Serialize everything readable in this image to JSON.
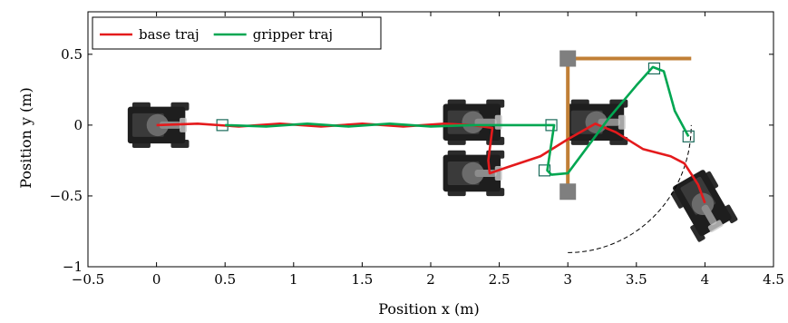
{
  "chart_data": {
    "type": "line",
    "title": "",
    "xlabel": "Position x (m)",
    "ylabel": "Position y (m)",
    "xlim": [
      -0.5,
      4.5
    ],
    "ylim": [
      -1.0,
      0.8
    ],
    "xticks": [
      -0.5,
      0,
      0.5,
      1,
      1.5,
      2,
      2.5,
      3,
      3.5,
      4,
      4.5
    ],
    "xtick_labels": [
      "−0.5",
      "0",
      "0.5",
      "1",
      "1.5",
      "2",
      "2.5",
      "3",
      "3.5",
      "4",
      "4.5"
    ],
    "yticks": [
      -1,
      -0.5,
      0,
      0.5
    ],
    "ytick_labels": [
      "−1",
      "−0.5",
      "0",
      "0.5"
    ],
    "grid": false,
    "legend_position": "top-left",
    "series": [
      {
        "name": "base traj",
        "color": "#e41a1c",
        "x": [
          0,
          0.3,
          0.6,
          0.9,
          1.2,
          1.5,
          1.8,
          2.1,
          2.3,
          2.45,
          2.42,
          2.43,
          2.55,
          2.8,
          3.0,
          3.2,
          3.35,
          3.55,
          3.75,
          3.85,
          3.95,
          4.0
        ],
        "y": [
          0.0,
          0.01,
          -0.01,
          0.01,
          -0.01,
          0.01,
          -0.01,
          0.01,
          0.0,
          -0.02,
          -0.25,
          -0.34,
          -0.3,
          -0.22,
          -0.1,
          0.01,
          -0.05,
          -0.17,
          -0.22,
          -0.27,
          -0.42,
          -0.55
        ]
      },
      {
        "name": "gripper traj",
        "color": "#00a651",
        "x": [
          0.5,
          0.8,
          1.1,
          1.4,
          1.7,
          2.0,
          2.3,
          2.6,
          2.9,
          2.85,
          2.88,
          3.0,
          3.3,
          3.5,
          3.62,
          3.7,
          3.78,
          3.88
        ],
        "y": [
          0.0,
          -0.01,
          0.01,
          -0.01,
          0.01,
          -0.01,
          0.0,
          0.0,
          0.0,
          -0.32,
          -0.35,
          -0.34,
          0.05,
          0.28,
          0.41,
          0.38,
          0.1,
          -0.08
        ]
      }
    ],
    "reference": {
      "frame_color": "#c17f36",
      "frame_x": [
        3.0,
        3.0,
        3.9
      ],
      "frame_y": [
        -0.47,
        0.47,
        0.47
      ],
      "markers_x": [
        3.0,
        3.0
      ],
      "markers_y": [
        0.47,
        -0.47
      ],
      "arc_center": [
        3.0,
        0.0
      ],
      "arc_radius": 0.9,
      "arc_start_deg": 270,
      "arc_end_deg": 360
    },
    "robot_poses": [
      {
        "x": 0.0,
        "y": 0.0,
        "theta_deg": 0
      },
      {
        "x": 2.3,
        "y": 0.02,
        "theta_deg": 0
      },
      {
        "x": 2.3,
        "y": -0.34,
        "theta_deg": 0
      },
      {
        "x": 3.2,
        "y": 0.02,
        "theta_deg": 0
      },
      {
        "x": 3.98,
        "y": -0.55,
        "theta_deg": -60
      }
    ],
    "gripper_poses": [
      {
        "x": 0.48,
        "y": 0.0
      },
      {
        "x": 2.88,
        "y": 0.0
      },
      {
        "x": 2.83,
        "y": -0.32
      },
      {
        "x": 3.63,
        "y": 0.4
      },
      {
        "x": 3.88,
        "y": -0.08
      }
    ]
  }
}
